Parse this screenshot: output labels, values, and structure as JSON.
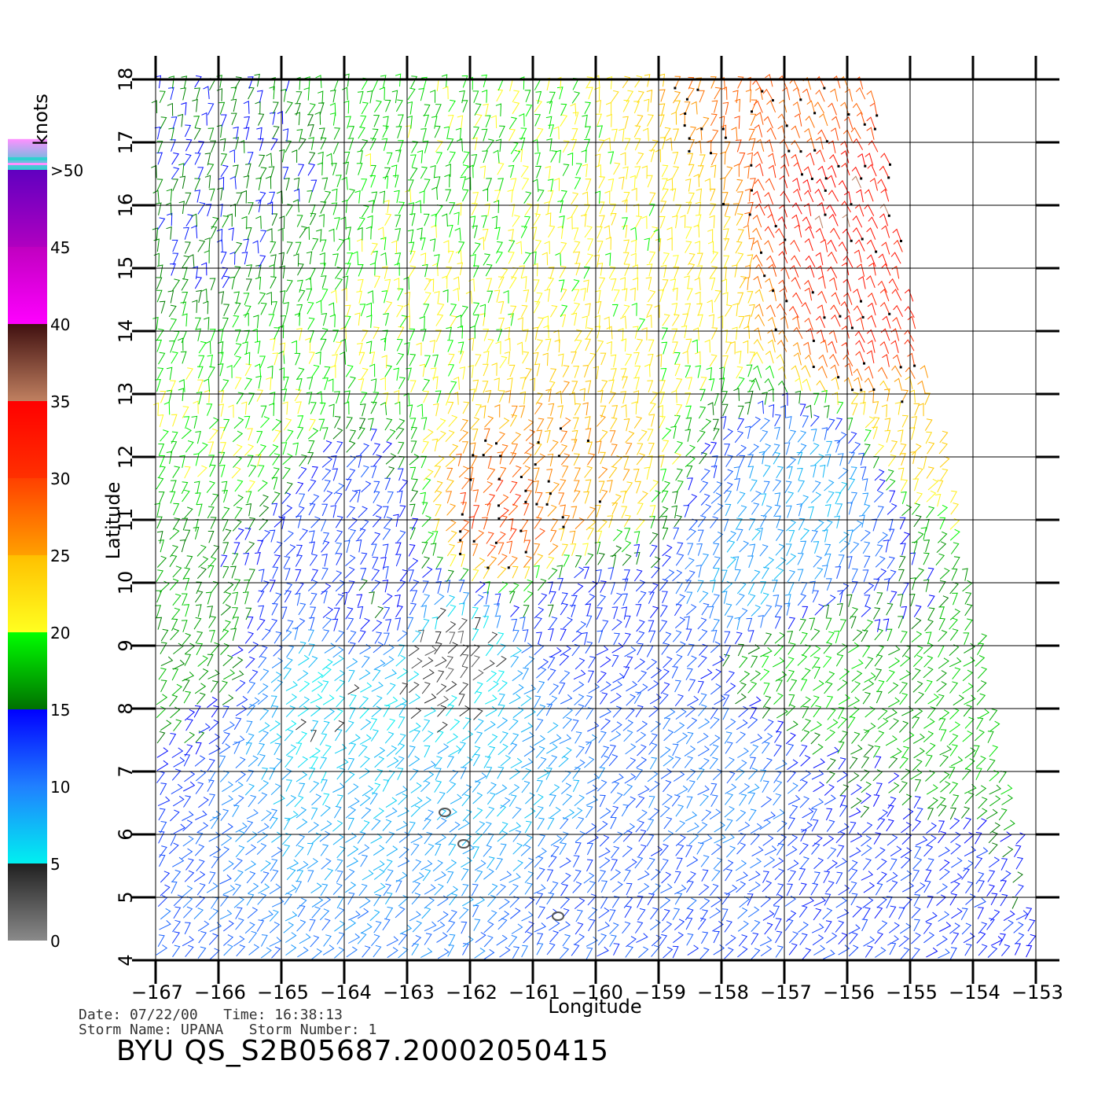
{
  "chart_data": {
    "type": "wind-barb-map",
    "xlabel": "Longitude",
    "ylabel": "Latitude",
    "xlim": [
      -167,
      -153
    ],
    "ylim": [
      4,
      18
    ],
    "x_ticks": [
      -167,
      -166,
      -165,
      -164,
      -163,
      -162,
      -161,
      -160,
      -159,
      -158,
      -157,
      -156,
      -155,
      -154,
      -153
    ],
    "x_tick_labels": [
      "-167",
      "-166",
      "-165",
      "-164",
      "-163",
      "-162",
      "-161",
      "-160",
      "-159",
      "-158",
      "-157",
      "-156",
      "-155",
      "-154",
      "-153"
    ],
    "y_ticks": [
      4,
      5,
      6,
      7,
      8,
      9,
      10,
      11,
      12,
      13,
      14,
      15,
      16,
      17,
      18
    ],
    "y_tick_labels": [
      "4",
      "5",
      "6",
      "7",
      "8",
      "9",
      "10",
      "11",
      "12",
      "13",
      "14",
      "15",
      "16",
      "17",
      "18"
    ],
    "grid": true,
    "legend": {
      "unit": "knots",
      "position": "left",
      "labels": [
        "0",
        "5",
        "10",
        "15",
        "20",
        "25",
        "30",
        "35",
        "40",
        "45",
        ">50"
      ],
      "bands": [
        {
          "from": 0,
          "to": 5,
          "colors": [
            "#8a8a8a",
            "#202020"
          ]
        },
        {
          "from": 5,
          "to": 10,
          "colors": [
            "#00f0f0",
            "#2080ff"
          ]
        },
        {
          "from": 10,
          "to": 15,
          "colors": [
            "#2080ff",
            "#0000ff"
          ]
        },
        {
          "from": 15,
          "to": 20,
          "colors": [
            "#007000",
            "#00ff00"
          ]
        },
        {
          "from": 20,
          "to": 25,
          "colors": [
            "#ffff20",
            "#ffc000"
          ]
        },
        {
          "from": 25,
          "to": 30,
          "colors": [
            "#ffa000",
            "#ff4000"
          ]
        },
        {
          "from": 30,
          "to": 35,
          "colors": [
            "#ff3000",
            "#ff0000"
          ]
        },
        {
          "from": 35,
          "to": 40,
          "colors": [
            "#c08060",
            "#401010"
          ]
        },
        {
          "from": 40,
          "to": 45,
          "colors": [
            "#ff00ff",
            "#c000c0"
          ]
        },
        {
          "from": 45,
          "to": 50,
          "colors": [
            "#b000c0",
            "#6000c0"
          ]
        },
        {
          "from": 50,
          "to": 52,
          "colors": [
            "#30d0d0",
            "#ff90ff"
          ]
        }
      ]
    },
    "swath": {
      "west_lon": -167,
      "east_lon_top": -155.6,
      "east_lon_bottom": -153
    },
    "wind_regions": [
      {
        "lon": -161.5,
        "lat": 11.0,
        "speed": 30
      },
      {
        "lon": -160.5,
        "lat": 11.5,
        "speed": 26
      },
      {
        "lon": -156.0,
        "lat": 16.0,
        "speed": 34
      },
      {
        "lon": -155.4,
        "lat": 14.0,
        "speed": 32
      },
      {
        "lon": -156.5,
        "lat": 17.5,
        "speed": 28
      },
      {
        "lon": -155.0,
        "lat": 12.5,
        "speed": 24
      },
      {
        "lon": -165.5,
        "lat": 12.4,
        "speed": 20
      },
      {
        "lon": -163.0,
        "lat": 14.0,
        "speed": 20
      },
      {
        "lon": -162.0,
        "lat": 17.0,
        "speed": 19
      },
      {
        "lon": -159.0,
        "lat": 15.0,
        "speed": 21
      },
      {
        "lon": -156.8,
        "lat": 8.5,
        "speed": 19
      },
      {
        "lon": -154.0,
        "lat": 7.5,
        "speed": 18
      },
      {
        "lon": -162.5,
        "lat": 8.8,
        "speed": 3
      },
      {
        "lon": -164.3,
        "lat": 8.0,
        "speed": 6
      },
      {
        "lon": -161.5,
        "lat": 6.5,
        "speed": 8
      },
      {
        "lon": -157.5,
        "lat": 10.0,
        "speed": 8
      },
      {
        "lon": -164.0,
        "lat": 11.0,
        "speed": 12
      },
      {
        "lon": -166.0,
        "lat": 16.0,
        "speed": 15
      },
      {
        "lon": -160.0,
        "lat": 5.0,
        "speed": 12
      },
      {
        "lon": -158.0,
        "lat": 7.0,
        "speed": 10
      },
      {
        "lon": -156.5,
        "lat": 11.5,
        "speed": 8
      },
      {
        "lon": -166.5,
        "lat": 9.0,
        "speed": 17
      },
      {
        "lon": -163.5,
        "lat": 9.5,
        "speed": 14
      },
      {
        "lon": -160.0,
        "lat": 9.5,
        "speed": 13
      },
      {
        "lon": -155.0,
        "lat": 5.0,
        "speed": 13
      }
    ],
    "islands": [
      {
        "lon": -162.4,
        "lat": 6.35
      },
      {
        "lon": -162.1,
        "lat": 5.85
      },
      {
        "lon": -160.6,
        "lat": 4.7
      }
    ]
  },
  "info": {
    "date_line": "Date: 07/22/00   Time: 16:38:13",
    "storm_line": "Storm Name: UPANA   Storm Number: 1"
  },
  "file_title": "BYU  QS_S2B05687.20002050415"
}
